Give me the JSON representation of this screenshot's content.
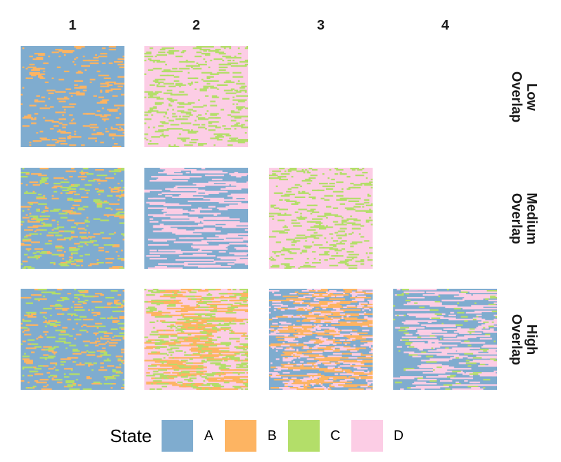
{
  "chart_data": {
    "type": "heatmap",
    "columns": [
      "1",
      "2",
      "3",
      "4"
    ],
    "rows": [
      {
        "label": "Low\nOverlap",
        "panels": [
          {
            "col": "1",
            "base": "A",
            "overlays": [
              {
                "state": "B",
                "share": 0.12
              }
            ]
          },
          {
            "col": "2",
            "base": "D",
            "overlays": [
              {
                "state": "C",
                "share": 0.22
              }
            ]
          }
        ]
      },
      {
        "label": "Medium\nOverlap",
        "panels": [
          {
            "col": "1",
            "base": "A",
            "overlays": [
              {
                "state": "B",
                "share": 0.09
              },
              {
                "state": "C",
                "share": 0.07
              }
            ]
          },
          {
            "col": "2",
            "base": "A",
            "overlays": [
              {
                "state": "D",
                "share": 0.33
              }
            ]
          },
          {
            "col": "3",
            "base": "D",
            "overlays": [
              {
                "state": "C",
                "share": 0.2
              }
            ]
          }
        ]
      },
      {
        "label": "High\nOverlap",
        "panels": [
          {
            "col": "1",
            "base": "A",
            "overlays": [
              {
                "state": "B",
                "share": 0.1
              },
              {
                "state": "C",
                "share": 0.07
              }
            ]
          },
          {
            "col": "2",
            "base": "D",
            "overlays": [
              {
                "state": "B",
                "share": 0.3
              },
              {
                "state": "C",
                "share": 0.22
              }
            ]
          },
          {
            "col": "3",
            "base": "A",
            "overlays": [
              {
                "state": "B",
                "share": 0.35
              },
              {
                "state": "D",
                "share": 0.22
              }
            ]
          },
          {
            "col": "4",
            "base": "A",
            "overlays": [
              {
                "state": "D",
                "share": 0.35
              },
              {
                "state": "C",
                "share": 0.03
              }
            ]
          }
        ]
      }
    ],
    "legend": {
      "title": "State",
      "placement": "bottom",
      "items": [
        {
          "label": "A",
          "color": "#7faccf"
        },
        {
          "label": "B",
          "color": "#fdb462"
        },
        {
          "label": "C",
          "color": "#b3de69"
        },
        {
          "label": "D",
          "color": "#fccde5"
        }
      ]
    }
  }
}
